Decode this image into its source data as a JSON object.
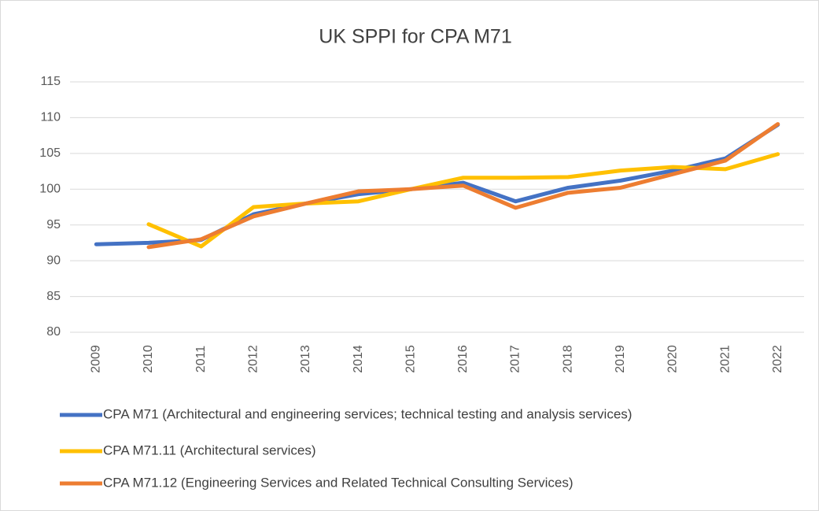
{
  "chart_data": {
    "type": "line",
    "title": "UK SPPI for CPA M71",
    "categories": [
      "2009",
      "2010",
      "2011",
      "2012",
      "2013",
      "2014",
      "2015",
      "2016",
      "2017",
      "2018",
      "2019",
      "2020",
      "2021",
      "2022"
    ],
    "series": [
      {
        "name": "CPA M71 (Architectural and engineering services; technical testing and analysis services)",
        "color": "#4472c4",
        "values": [
          92.3,
          92.5,
          92.9,
          96.5,
          98.0,
          99.3,
          100.0,
          100.9,
          98.3,
          100.2,
          101.2,
          102.6,
          104.3,
          109.0
        ]
      },
      {
        "name": "CPA M71.11 (Architectural services)",
        "color": "#ffc000",
        "values": [
          null,
          95.1,
          92.0,
          97.5,
          98.0,
          98.3,
          100.0,
          101.6,
          101.6,
          101.7,
          102.6,
          103.1,
          102.8,
          104.9
        ]
      },
      {
        "name": "CPA M71.12 (Engineering Services and Related Technical Consulting Services)",
        "color": "#ed7d31",
        "values": [
          null,
          91.9,
          93.0,
          96.2,
          98.0,
          99.7,
          100.0,
          100.5,
          97.4,
          99.5,
          100.2,
          102.1,
          104.0,
          109.1
        ]
      }
    ],
    "ylim": [
      80,
      115
    ],
    "yticks": [
      80,
      85,
      90,
      95,
      100,
      105,
      110,
      115
    ],
    "grid": true
  }
}
